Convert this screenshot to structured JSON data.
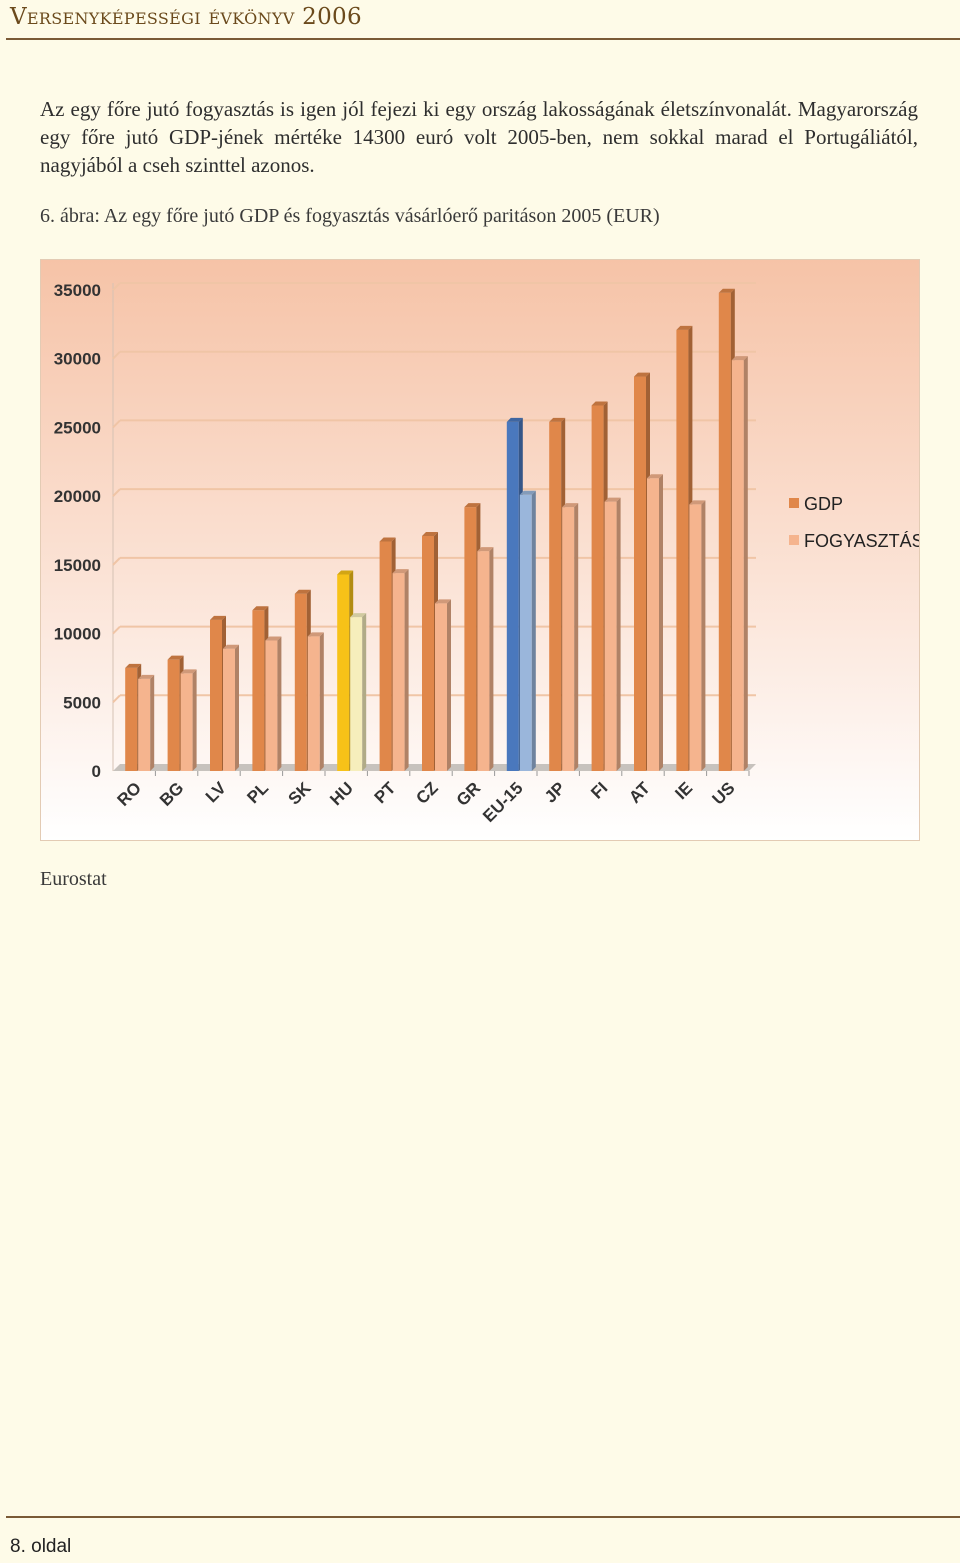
{
  "header": {
    "title": "Versenyképességi évkönyv 2006"
  },
  "paragraph": "Az egy főre jutó fogyasztás is igen jól fejezi ki egy ország lakosságának életszínvonalát. Magyarország egy főre jutó GDP-jének mértéke 14300 euró volt 2005-ben, nem sokkal marad el Portugáliától, nagyjából a cseh szinttel azonos.",
  "caption": "6. ábra: Az egy főre jutó GDP és fogyasztás vásárlóerő paritáson 2005 (EUR)",
  "source": "Eurostat",
  "footer": {
    "page": "8. oldal"
  },
  "colors": {
    "gdp": "#e0874a",
    "fogyasztas": "#f5b48e",
    "hu_gdp": "#f7c218",
    "hu_fogyasztas": "#f6eebc",
    "eu_gdp": "#4a78bd",
    "eu_fogyasztas": "#9ab6db"
  },
  "chart_data": {
    "type": "bar",
    "categories": [
      "RO",
      "BG",
      "LV",
      "PL",
      "SK",
      "HU",
      "PT",
      "CZ",
      "GR",
      "EU-15",
      "JP",
      "FI",
      "AT",
      "IE",
      "US"
    ],
    "series": [
      {
        "name": "GDP",
        "values": [
          7500,
          8100,
          11000,
          11700,
          12900,
          14300,
          16700,
          17100,
          19200,
          25400,
          25400,
          26600,
          28700,
          32100,
          34800
        ]
      },
      {
        "name": "FOGYASZTÁS",
        "values": [
          6700,
          7100,
          8900,
          9500,
          9800,
          11200,
          14400,
          12200,
          16000,
          20100,
          19200,
          19600,
          21300,
          19400,
          29900
        ]
      }
    ],
    "yticks": [
      "0",
      "5000",
      "10000",
      "15000",
      "20000",
      "25000",
      "30000",
      "35000"
    ],
    "ylim": [
      0,
      35000
    ],
    "legend": "right",
    "grid": true
  }
}
